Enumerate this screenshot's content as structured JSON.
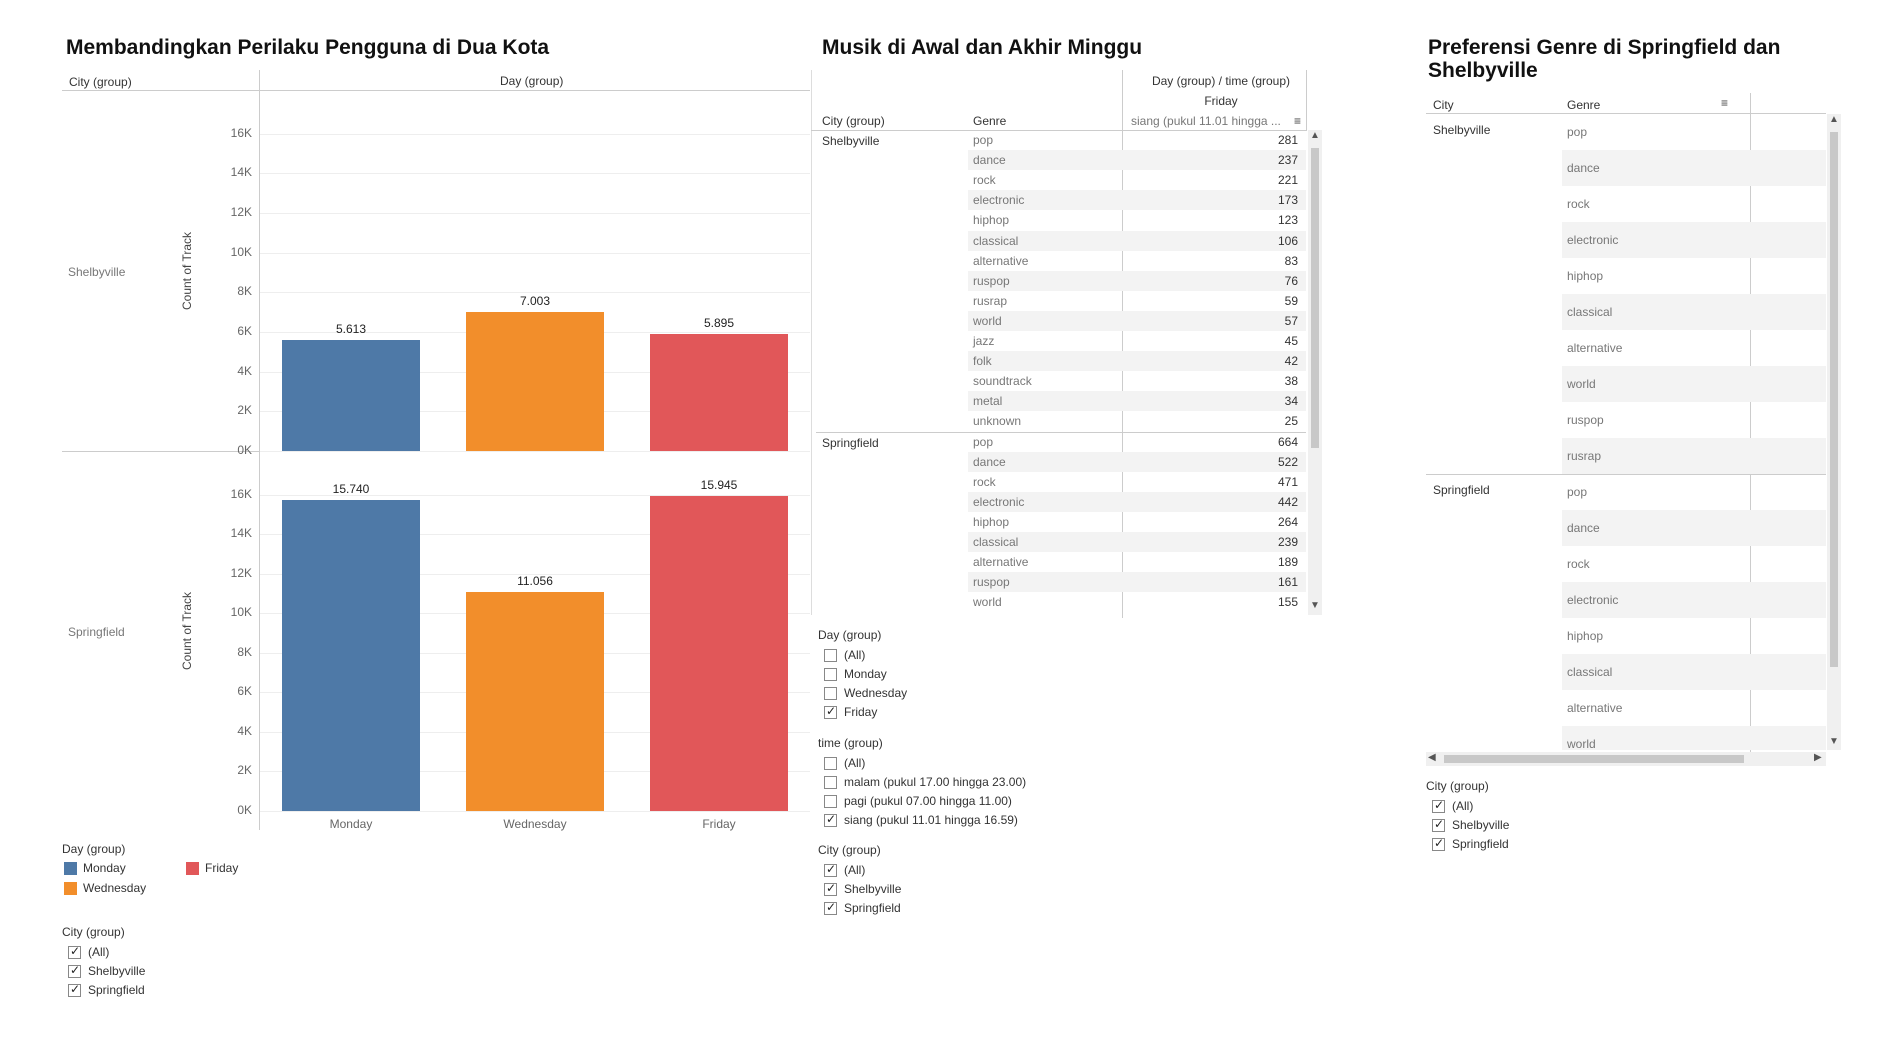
{
  "panel1": {
    "title": "Membandingkan Perilaku Pengguna di Dua Kota",
    "col_header_city": "City (group)",
    "col_header_day": "Day (group)",
    "y_axis_label": "Count of Track",
    "legend_title": "Day (group)",
    "legend": [
      {
        "label": "Monday",
        "color": "#4e79a7"
      },
      {
        "label": "Wednesday",
        "color": "#f28e2b"
      },
      {
        "label": "Friday",
        "color": "#e15759"
      }
    ],
    "city_filter": {
      "title": "City (group)",
      "items": [
        {
          "label": "(All)",
          "checked": true
        },
        {
          "label": "Shelbyville",
          "checked": true
        },
        {
          "label": "Springfield",
          "checked": true
        }
      ]
    }
  },
  "chart_data": [
    {
      "type": "bar",
      "title": "Shelbyville",
      "categories": [
        "Monday",
        "Wednesday",
        "Friday"
      ],
      "values": [
        5613,
        7003,
        5895
      ],
      "value_labels": [
        "5.613",
        "7.003",
        "5.895"
      ],
      "ylabel": "Count of Track",
      "ylim": [
        0,
        17000
      ],
      "yticks": [
        "0K",
        "2K",
        "4K",
        "6K",
        "8K",
        "10K",
        "12K",
        "14K",
        "16K"
      ],
      "colors": [
        "#4e79a7",
        "#f28e2b",
        "#e15759"
      ]
    },
    {
      "type": "bar",
      "title": "Springfield",
      "categories": [
        "Monday",
        "Wednesday",
        "Friday"
      ],
      "values": [
        15740,
        11056,
        15945
      ],
      "value_labels": [
        "15.740",
        "11.056",
        "15.945"
      ],
      "ylabel": "Count of Track",
      "ylim": [
        0,
        17000
      ],
      "yticks": [
        "0K",
        "2K",
        "4K",
        "6K",
        "8K",
        "10K",
        "12K",
        "14K",
        "16K"
      ],
      "colors": [
        "#4e79a7",
        "#f28e2b",
        "#e15759"
      ]
    }
  ],
  "panel2": {
    "title": "Musik di Awal dan Akhir Minggu",
    "header_top": "Day (group)  /  time (group)",
    "header_day": "Friday",
    "header_time": "siang (pukul 11.01 hingga ...",
    "col_city": "City (group)",
    "col_genre": "Genre",
    "groups": [
      {
        "city": "Shelbyville",
        "rows": [
          {
            "genre": "pop",
            "value": "281"
          },
          {
            "genre": "dance",
            "value": "237"
          },
          {
            "genre": "rock",
            "value": "221"
          },
          {
            "genre": "electronic",
            "value": "173"
          },
          {
            "genre": "hiphop",
            "value": "123"
          },
          {
            "genre": "classical",
            "value": "106"
          },
          {
            "genre": "alternative",
            "value": "83"
          },
          {
            "genre": "ruspop",
            "value": "76"
          },
          {
            "genre": "rusrap",
            "value": "59"
          },
          {
            "genre": "world",
            "value": "57"
          },
          {
            "genre": "jazz",
            "value": "45"
          },
          {
            "genre": "folk",
            "value": "42"
          },
          {
            "genre": "soundtrack",
            "value": "38"
          },
          {
            "genre": "metal",
            "value": "34"
          },
          {
            "genre": "unknown",
            "value": "25"
          }
        ]
      },
      {
        "city": "Springfield",
        "rows": [
          {
            "genre": "pop",
            "value": "664"
          },
          {
            "genre": "dance",
            "value": "522"
          },
          {
            "genre": "rock",
            "value": "471"
          },
          {
            "genre": "electronic",
            "value": "442"
          },
          {
            "genre": "hiphop",
            "value": "264"
          },
          {
            "genre": "classical",
            "value": "239"
          },
          {
            "genre": "alternative",
            "value": "189"
          },
          {
            "genre": "ruspop",
            "value": "161"
          },
          {
            "genre": "world",
            "value": "155"
          }
        ]
      }
    ],
    "filters": [
      {
        "title": "Day (group)",
        "items": [
          {
            "label": "(All)",
            "checked": false
          },
          {
            "label": "Monday",
            "checked": false
          },
          {
            "label": "Wednesday",
            "checked": false
          },
          {
            "label": "Friday",
            "checked": true
          }
        ]
      },
      {
        "title": "time (group)",
        "items": [
          {
            "label": "(All)",
            "checked": false
          },
          {
            "label": "malam (pukul 17.00 hingga 23.00)",
            "checked": false
          },
          {
            "label": "pagi (pukul 07.00 hingga 11.00)",
            "checked": false
          },
          {
            "label": "siang (pukul 11.01 hingga 16.59)",
            "checked": true
          }
        ]
      },
      {
        "title": "City (group)",
        "items": [
          {
            "label": "(All)",
            "checked": true
          },
          {
            "label": "Shelbyville",
            "checked": true
          },
          {
            "label": "Springfield",
            "checked": true
          }
        ]
      }
    ]
  },
  "panel3": {
    "title_line1": "Preferensi Genre di Springfield dan",
    "title_line2": "Shelbyville",
    "col_city": "City",
    "col_genre": "Genre",
    "groups": [
      {
        "city": "Shelbyville",
        "genres": [
          "pop",
          "dance",
          "rock",
          "electronic",
          "hiphop",
          "classical",
          "alternative",
          "world",
          "ruspop",
          "rusrap"
        ]
      },
      {
        "city": "Springfield",
        "genres": [
          "pop",
          "dance",
          "rock",
          "electronic",
          "hiphop",
          "classical",
          "alternative",
          "world"
        ]
      }
    ],
    "city_filter": {
      "title": "City (group)",
      "items": [
        {
          "label": "(All)",
          "checked": true
        },
        {
          "label": "Shelbyville",
          "checked": true
        },
        {
          "label": "Springfield",
          "checked": true
        }
      ]
    }
  }
}
